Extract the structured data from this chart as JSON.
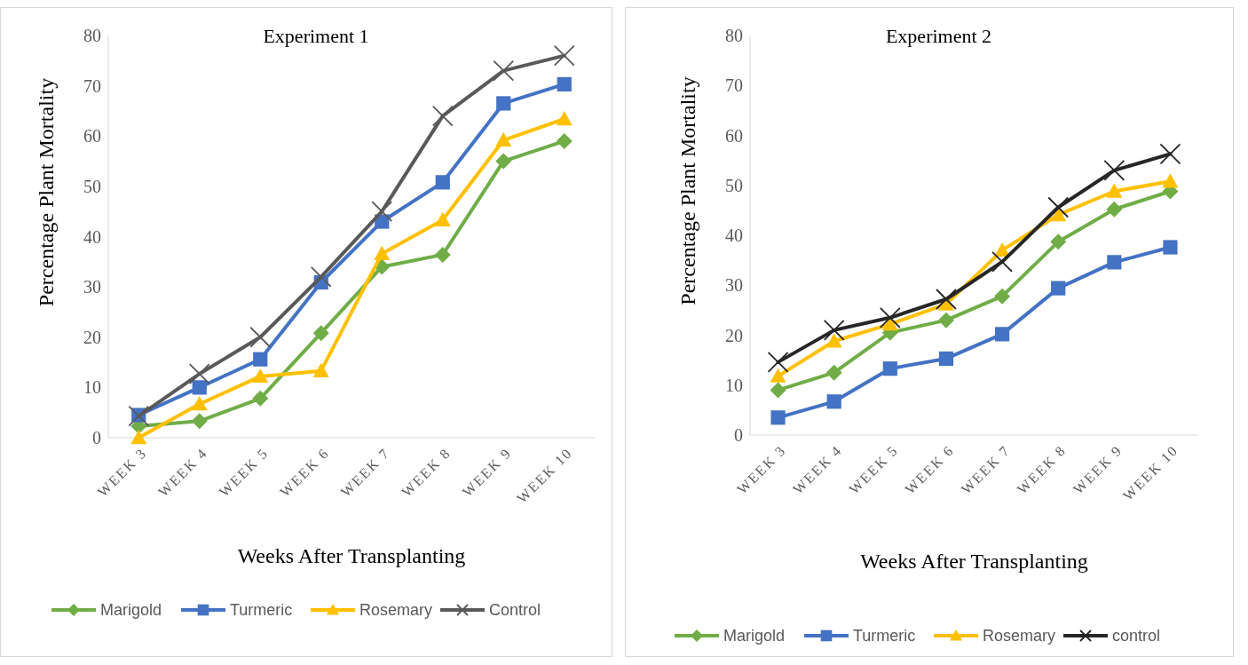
{
  "chart_data": [
    {
      "type": "line",
      "title": "Experiment 1",
      "xlabel": "Weeks After Transplanting",
      "ylabel": "Percentage Plant Mortality",
      "categories": [
        "WEEK 3",
        "WEEK 4",
        "WEEK 5",
        "WEEK 6",
        "WEEK 7",
        "WEEK 8",
        "WEEK 9",
        "WEEK 10"
      ],
      "ylim": [
        0,
        80
      ],
      "yticks": [
        0,
        10,
        20,
        30,
        40,
        50,
        60,
        70,
        80
      ],
      "grid": false,
      "legend": "bottom",
      "series": [
        {
          "name": "Marigold",
          "color": "#70ad47",
          "marker": "diamond",
          "values": [
            2.3,
            3.3,
            7.8,
            20.8,
            34,
            36.4,
            55,
            59
          ]
        },
        {
          "name": "Turmeric",
          "color": "#4472c4",
          "marker": "square",
          "values": [
            4.5,
            10,
            15.6,
            30.9,
            43,
            50.8,
            66.5,
            70.3
          ]
        },
        {
          "name": "Rosemary",
          "color": "#ffc000",
          "marker": "triangle",
          "values": [
            0,
            6.7,
            12.2,
            13.3,
            36.6,
            43.3,
            59.2,
            63.4
          ]
        },
        {
          "name": "Control",
          "color": "#595959",
          "marker": "cross",
          "values": [
            4.3,
            12.7,
            20,
            32,
            45,
            64,
            73,
            76
          ]
        }
      ]
    },
    {
      "type": "line",
      "title": "Experiment 2",
      "xlabel": "Weeks After Transplanting",
      "ylabel": "Percentage Plant Mortality",
      "categories": [
        "WEEK 3",
        "WEEK 4",
        "WEEK 5",
        "WEEK 6",
        "WEEK 7",
        "WEEK 8",
        "WEEK 9",
        "WEEK 10"
      ],
      "ylim": [
        0,
        80
      ],
      "yticks": [
        0,
        10,
        20,
        30,
        40,
        50,
        60,
        70,
        80
      ],
      "grid": false,
      "legend": "bottom",
      "series": [
        {
          "name": "Marigold",
          "color": "#70ad47",
          "marker": "diamond",
          "values": [
            9,
            12.5,
            20.5,
            23,
            27.8,
            38.7,
            45.2,
            48.8
          ]
        },
        {
          "name": "Turmeric",
          "color": "#4472c4",
          "marker": "square",
          "values": [
            3.5,
            6.7,
            13.3,
            15.3,
            20.2,
            29.4,
            34.6,
            37.6
          ]
        },
        {
          "name": "Rosemary",
          "color": "#ffc000",
          "marker": "triangle",
          "values": [
            11.8,
            18.8,
            22.2,
            26.2,
            37,
            44.1,
            48.8,
            50.8
          ]
        },
        {
          "name": "control",
          "color": "#262626",
          "marker": "cross",
          "values": [
            14.6,
            21,
            23.5,
            27.2,
            34.7,
            45.6,
            53,
            56.3
          ]
        }
      ]
    }
  ]
}
